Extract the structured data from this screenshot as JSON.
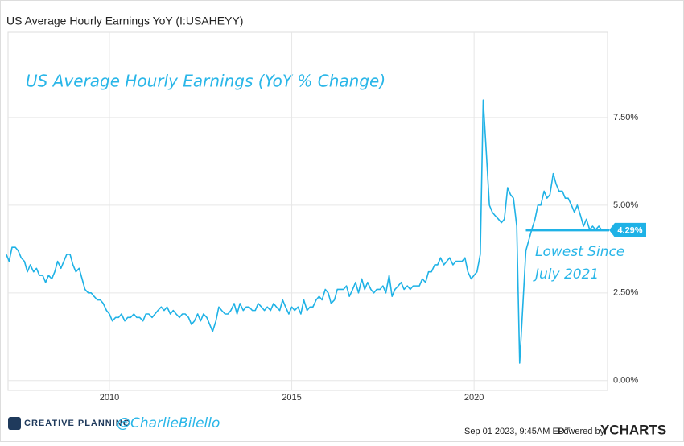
{
  "chart_data": {
    "type": "line",
    "title": "US Average Hourly Earnings YoY (I:USAHEYY)",
    "annotation": "US Average Hourly Earnings (YoY % Change)",
    "callout": {
      "lines": [
        "Lowest Since",
        "July 2021"
      ],
      "x": 2021.42,
      "label": "4.29%"
    },
    "footer": {
      "brand": "CREATIVE PLANNING",
      "handle": "@CharlieBilello",
      "timestamp": "Sep 01 2023, 9:45AM EDT.",
      "powered": "Powered by",
      "provider": "YCHARTS"
    },
    "xlim": [
      2007.22,
      2023.66
    ],
    "xticks": [
      2010,
      2015,
      2020
    ],
    "ylim": [
      -0.28,
      9.93
    ],
    "yticks": [
      {
        "value": 0,
        "label": "0.00%"
      },
      {
        "value": 2.5,
        "label": "2.50%"
      },
      {
        "value": 5,
        "label": "5.00%"
      },
      {
        "value": 7.5,
        "label": "7.50%"
      }
    ],
    "grid": true,
    "series": [
      {
        "color": "#1fb2e6",
        "x": [
          2007.17,
          2007.25,
          2007.33,
          2007.42,
          2007.5,
          2007.58,
          2007.67,
          2007.75,
          2007.83,
          2007.92,
          2008,
          2008.08,
          2008.17,
          2008.25,
          2008.33,
          2008.42,
          2008.5,
          2008.58,
          2008.67,
          2008.75,
          2008.83,
          2008.92,
          2009,
          2009.08,
          2009.17,
          2009.25,
          2009.33,
          2009.42,
          2009.5,
          2009.58,
          2009.67,
          2009.75,
          2009.83,
          2009.92,
          2010,
          2010.08,
          2010.17,
          2010.25,
          2010.33,
          2010.42,
          2010.5,
          2010.58,
          2010.67,
          2010.75,
          2010.83,
          2010.92,
          2011,
          2011.08,
          2011.17,
          2011.25,
          2011.33,
          2011.42,
          2011.5,
          2011.58,
          2011.67,
          2011.75,
          2011.83,
          2011.92,
          2012,
          2012.08,
          2012.17,
          2012.25,
          2012.33,
          2012.42,
          2012.5,
          2012.58,
          2012.67,
          2012.75,
          2012.83,
          2012.92,
          2013,
          2013.08,
          2013.17,
          2013.25,
          2013.33,
          2013.42,
          2013.5,
          2013.58,
          2013.67,
          2013.75,
          2013.83,
          2013.92,
          2014,
          2014.08,
          2014.17,
          2014.25,
          2014.33,
          2014.42,
          2014.5,
          2014.58,
          2014.67,
          2014.75,
          2014.83,
          2014.92,
          2015,
          2015.08,
          2015.17,
          2015.25,
          2015.33,
          2015.42,
          2015.5,
          2015.58,
          2015.67,
          2015.75,
          2015.83,
          2015.92,
          2016,
          2016.08,
          2016.17,
          2016.25,
          2016.33,
          2016.42,
          2016.5,
          2016.58,
          2016.67,
          2016.75,
          2016.83,
          2016.92,
          2017,
          2017.08,
          2017.17,
          2017.25,
          2017.33,
          2017.42,
          2017.5,
          2017.58,
          2017.67,
          2017.75,
          2017.83,
          2017.92,
          2018,
          2018.08,
          2018.17,
          2018.25,
          2018.33,
          2018.42,
          2018.5,
          2018.58,
          2018.67,
          2018.75,
          2018.83,
          2018.92,
          2019,
          2019.08,
          2019.17,
          2019.25,
          2019.33,
          2019.42,
          2019.5,
          2019.58,
          2019.67,
          2019.75,
          2019.83,
          2019.92,
          2020,
          2020.08,
          2020.17,
          2020.25,
          2020.33,
          2020.42,
          2020.5,
          2020.58,
          2020.67,
          2020.75,
          2020.83,
          2020.92,
          2021,
          2021.08,
          2021.17,
          2021.25,
          2021.33,
          2021.42,
          2021.5,
          2021.58,
          2021.67,
          2021.75,
          2021.83,
          2021.92,
          2022,
          2022.08,
          2022.17,
          2022.25,
          2022.33,
          2022.42,
          2022.5,
          2022.58,
          2022.67,
          2022.75,
          2022.83,
          2022.92,
          2023,
          2023.08,
          2023.17,
          2023.25,
          2023.33,
          2023.42,
          2023.5
        ],
        "values": [
          3.6,
          3.4,
          3.8,
          3.8,
          3.7,
          3.5,
          3.4,
          3.1,
          3.3,
          3.1,
          3.2,
          3.0,
          3.0,
          2.8,
          3.0,
          2.9,
          3.1,
          3.4,
          3.2,
          3.4,
          3.6,
          3.6,
          3.3,
          3.1,
          3.2,
          2.9,
          2.6,
          2.5,
          2.5,
          2.4,
          2.3,
          2.3,
          2.2,
          2.0,
          1.9,
          1.7,
          1.8,
          1.8,
          1.9,
          1.7,
          1.8,
          1.8,
          1.9,
          1.8,
          1.8,
          1.7,
          1.9,
          1.9,
          1.8,
          1.9,
          2.0,
          2.1,
          2.0,
          2.1,
          1.9,
          2.0,
          1.9,
          1.8,
          1.9,
          1.9,
          1.8,
          1.6,
          1.7,
          1.9,
          1.7,
          1.9,
          1.8,
          1.6,
          1.4,
          1.7,
          2.1,
          2.0,
          1.9,
          1.9,
          2.0,
          2.2,
          1.9,
          2.2,
          2.0,
          2.1,
          2.1,
          2.0,
          2.0,
          2.2,
          2.1,
          2.0,
          2.1,
          2.0,
          2.2,
          2.1,
          2.0,
          2.3,
          2.1,
          1.9,
          2.1,
          2.0,
          2.1,
          1.9,
          2.3,
          2.0,
          2.1,
          2.1,
          2.3,
          2.4,
          2.3,
          2.6,
          2.5,
          2.2,
          2.3,
          2.6,
          2.6,
          2.6,
          2.7,
          2.4,
          2.6,
          2.8,
          2.5,
          2.9,
          2.6,
          2.8,
          2.6,
          2.5,
          2.6,
          2.6,
          2.7,
          2.5,
          3.0,
          2.4,
          2.6,
          2.7,
          2.8,
          2.6,
          2.7,
          2.6,
          2.7,
          2.7,
          2.7,
          2.9,
          2.8,
          3.1,
          3.1,
          3.3,
          3.3,
          3.5,
          3.3,
          3.4,
          3.5,
          3.3,
          3.4,
          3.4,
          3.4,
          3.5,
          3.1,
          2.9,
          3.0,
          3.1,
          3.6,
          8.0,
          6.6,
          5.0,
          4.8,
          4.7,
          4.6,
          4.5,
          4.6,
          5.5,
          5.3,
          5.2,
          4.4,
          0.5,
          2.0,
          3.7,
          4.0,
          4.3,
          4.6,
          5.0,
          5.0,
          5.4,
          5.2,
          5.3,
          5.9,
          5.6,
          5.4,
          5.4,
          5.2,
          5.2,
          5.0,
          4.8,
          5.0,
          4.7,
          4.4,
          4.6,
          4.3,
          4.4,
          4.3,
          4.4,
          4.29
        ]
      }
    ]
  }
}
